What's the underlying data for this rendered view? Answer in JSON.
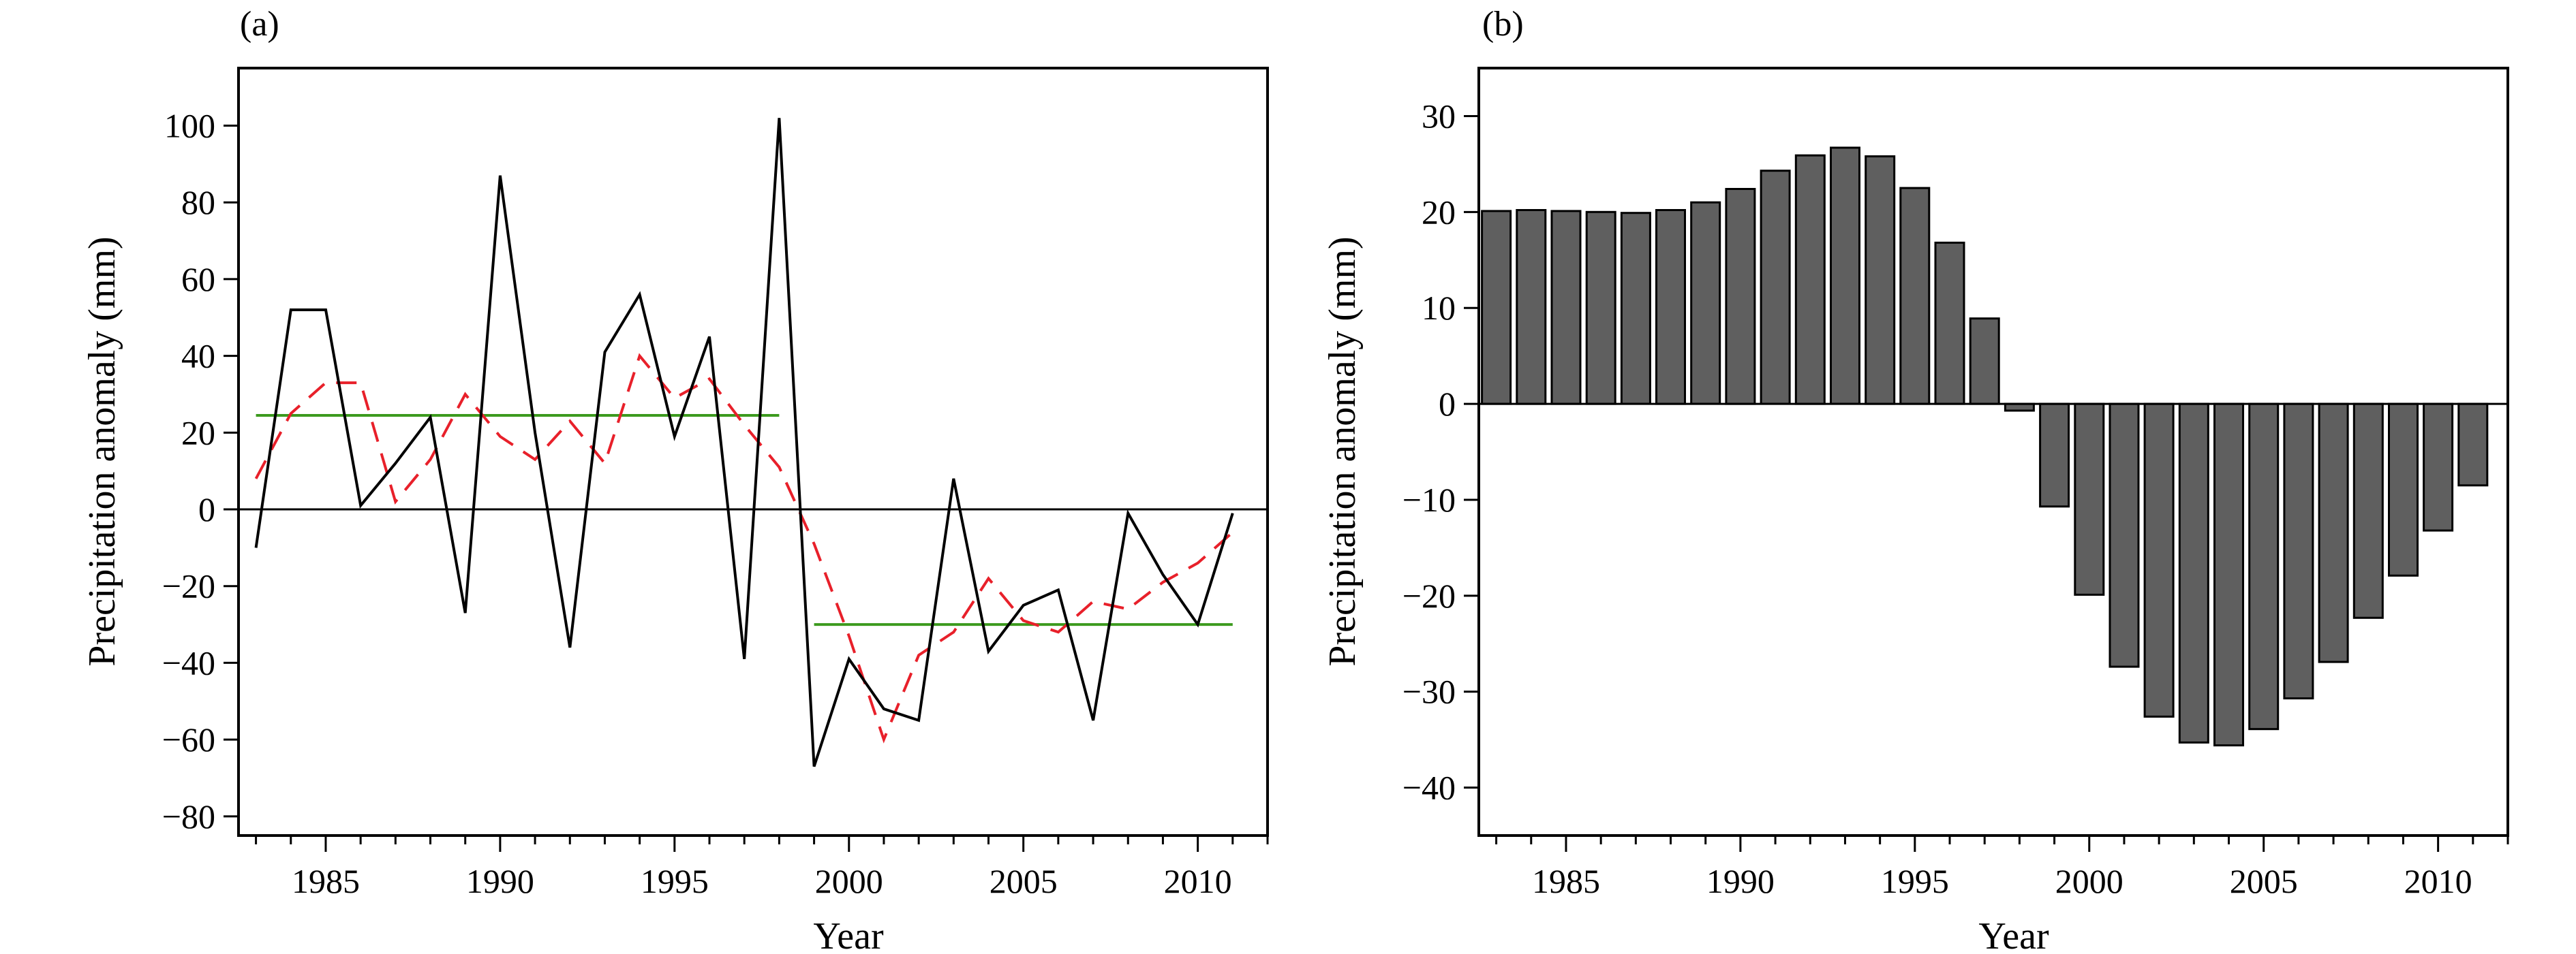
{
  "colors": {
    "series_line": "#000000",
    "moving_average": "#e8202a",
    "period_mean": "#3c9a1e",
    "bar_fill": "#5f5f5f",
    "bar_stroke": "#000000"
  },
  "chart_data": [
    {
      "panel_label": "(a)",
      "type": "line",
      "xlabel": "Year",
      "ylabel": "Precipitation anomaly (mm)",
      "xlim": [
        1982.5,
        2012
      ],
      "ylim": [
        -85,
        115
      ],
      "xticks": [
        1985,
        1990,
        1995,
        2000,
        2005,
        2010
      ],
      "yticks": [
        -80,
        -60,
        -40,
        -20,
        0,
        20,
        40,
        60,
        80,
        100
      ],
      "ytick_labels": [
        "−80",
        "−60",
        "−40",
        "−20",
        "0",
        "20",
        "40",
        "60",
        "80",
        "100"
      ],
      "grid": false,
      "legend": "none",
      "zero_line": true,
      "series": [
        {
          "style": "solid",
          "color": "#000000",
          "x": [
            1983,
            1984,
            1985,
            1986,
            1987,
            1988,
            1989,
            1990,
            1991,
            1992,
            1993,
            1994,
            1995,
            1996,
            1997,
            1998,
            1999,
            2000,
            2001,
            2002,
            2003,
            2004,
            2005,
            2006,
            2007,
            2008,
            2009,
            2010,
            2011
          ],
          "y": [
            -10,
            52,
            52,
            1,
            12,
            24,
            -27,
            87,
            20,
            -36,
            41,
            56,
            19,
            45,
            -39,
            102,
            -67,
            -39,
            -52,
            -55,
            8,
            -37,
            -25,
            -21,
            -55,
            -1,
            -17,
            -30,
            -1
          ]
        },
        {
          "style": "dashed",
          "color": "#e8202a",
          "x": [
            1983,
            1984,
            1985,
            1986,
            1987,
            1988,
            1989,
            1990,
            1991,
            1992,
            1993,
            1994,
            1995,
            1996,
            1997,
            1998,
            1999,
            2000,
            2001,
            2002,
            2003,
            2004,
            2005,
            2006,
            2007,
            2008,
            2009,
            2010,
            2011
          ],
          "y": [
            8,
            25,
            33,
            33,
            2,
            13,
            30,
            19,
            13,
            23,
            12,
            40,
            29,
            34,
            22,
            11,
            -9,
            -33,
            -60,
            -38,
            -32,
            -18,
            -29,
            -32,
            -24,
            -26,
            -19,
            -14,
            -6
          ]
        }
      ],
      "period_means": [
        {
          "x": [
            1983,
            1998
          ],
          "y": 24.5,
          "color": "#3c9a1e"
        },
        {
          "x": [
            1999,
            2011
          ],
          "y": -30,
          "color": "#3c9a1e"
        }
      ]
    },
    {
      "panel_label": "(b)",
      "type": "bar",
      "xlabel": "Year",
      "ylabel": "Precipitation anomaly (mm)",
      "xlim": [
        1982.5,
        2012
      ],
      "ylim": [
        -45,
        35
      ],
      "xticks": [
        1985,
        1990,
        1995,
        2000,
        2005,
        2010
      ],
      "yticks": [
        -40,
        -30,
        -20,
        -10,
        0,
        10,
        20,
        30
      ],
      "ytick_labels": [
        "−40",
        "−30",
        "−20",
        "−10",
        "0",
        "10",
        "20",
        "30"
      ],
      "grid": false,
      "legend": "none",
      "zero_line": true,
      "x": [
        1983,
        1984,
        1985,
        1986,
        1987,
        1988,
        1989,
        1990,
        1991,
        1992,
        1993,
        1994,
        1995,
        1996,
        1997,
        1998,
        1999,
        2000,
        2001,
        2002,
        2003,
        2004,
        2005,
        2006,
        2007,
        2008,
        2009,
        2010,
        2011
      ],
      "values": [
        20.1,
        20.2,
        20.1,
        20.0,
        19.9,
        20.2,
        21.0,
        22.4,
        24.3,
        25.9,
        26.7,
        25.8,
        22.5,
        16.8,
        8.9,
        -0.7,
        -10.7,
        -19.9,
        -27.4,
        -32.6,
        -35.3,
        -35.6,
        -33.9,
        -30.7,
        -26.9,
        -22.3,
        -17.9,
        -13.2,
        -8.5
      ]
    }
  ]
}
